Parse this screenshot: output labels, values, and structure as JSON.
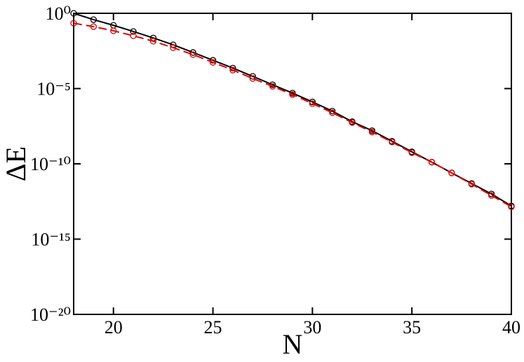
{
  "chart_data": {
    "type": "line",
    "x_label": "N",
    "y_label": "ΔE",
    "log_y": true,
    "xlim": [
      18,
      40
    ],
    "ylim": [
      1e-20,
      1
    ],
    "xticks": [
      20,
      25,
      30,
      35,
      40
    ],
    "yticks": [
      {
        "value": 1,
        "label": "10⁰"
      },
      {
        "value": 1e-05,
        "label": "10⁻⁵"
      },
      {
        "value": 1e-10,
        "label": "10⁻¹⁰"
      },
      {
        "value": 1e-15,
        "label": "10⁻¹⁵"
      },
      {
        "value": 1e-20,
        "label": "10⁻²⁰"
      }
    ],
    "x": [
      18,
      19,
      20,
      21,
      22,
      23,
      24,
      25,
      26,
      27,
      28,
      29,
      30,
      31,
      32,
      33,
      34,
      35,
      36,
      37,
      38,
      39,
      40
    ],
    "series": [
      {
        "color": "#000000",
        "dash": false,
        "values": [
          1,
          0.38,
          0.16,
          0.062,
          0.023,
          0.0081,
          0.0025,
          0.00076,
          0.00023,
          6.5e-05,
          1.8e-05,
          5e-06,
          1.3e-06,
          3.2e-07,
          6.3e-08,
          1.6e-08,
          3.2e-09,
          6.3e-10,
          1.3e-10,
          2.5e-11,
          5e-12,
          1e-12,
          1.6e-13
        ]
      },
      {
        "color": "#e00000",
        "dash": true,
        "values": [
          0.22,
          0.13,
          0.069,
          0.032,
          0.014,
          0.0052,
          0.0018,
          0.00055,
          0.00017,
          4.7e-05,
          1.4e-05,
          4e-06,
          1e-06,
          2.5e-07,
          5.5e-08,
          1.3e-08,
          2.8e-09,
          5.5e-10,
          1.3e-10,
          2.5e-11,
          4.5e-12,
          7.9e-13,
          1.4e-13
        ]
      }
    ]
  }
}
